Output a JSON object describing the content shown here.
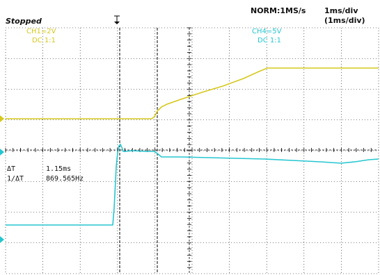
{
  "header": {
    "status": "Stopped",
    "mode": "NORM:1MS/s",
    "timebase": "1ms/div",
    "timebase_secondary": "(1ms/div)"
  },
  "channels": [
    {
      "name": "CH1",
      "label": "CH1=2V",
      "coupling": "DC  1:1",
      "color": "#d6c81c"
    },
    {
      "name": "CH4",
      "label": "CH4=5V",
      "coupling": "DC  1:1",
      "color": "#25c6d0"
    }
  ],
  "measurements": {
    "dt_label": "ΔT",
    "dt_value": "1.15ms",
    "inv_label": "1/ΔT",
    "inv_value": "869.565Hz"
  },
  "colors": {
    "grid": "#000000",
    "cursor": "#000000"
  }
}
